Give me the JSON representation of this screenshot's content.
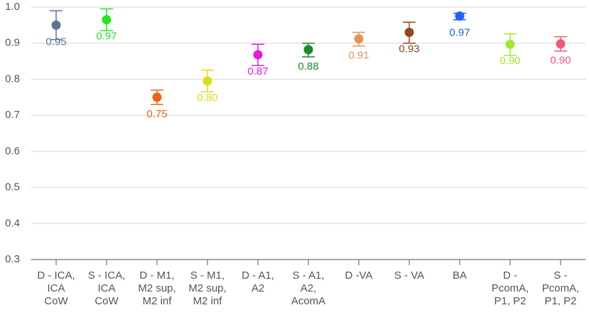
{
  "chart_data": {
    "type": "errorbar",
    "categories": [
      [
        "D - ICA,",
        "ICA",
        "CoW"
      ],
      [
        "S - ICA,",
        "ICA",
        "CoW"
      ],
      [
        "D - M1,",
        "M2 sup,",
        "M2 inf"
      ],
      [
        "S - M1,",
        "M2 sup,",
        "M2 inf"
      ],
      [
        "D - A1,",
        "A2"
      ],
      [
        "S - A1,",
        "A2,",
        "AcomA"
      ],
      [
        "D -VA"
      ],
      [
        "S - VA"
      ],
      [
        "BA"
      ],
      [
        "D -",
        "PcomA,",
        "P1, P2"
      ],
      [
        "S -",
        "PcomA,",
        "P1, P2"
      ]
    ],
    "values": [
      0.95,
      0.965,
      0.75,
      0.795,
      0.868,
      0.882,
      0.912,
      0.93,
      0.975,
      0.897,
      0.898
    ],
    "value_labels": [
      "0.95",
      "0.97",
      "0.75",
      "0.80",
      "0.87",
      "0.88",
      "0.91",
      "0.93",
      "0.97",
      "0.90",
      "0.90"
    ],
    "lower": [
      0.91,
      0.935,
      0.73,
      0.765,
      0.838,
      0.862,
      0.892,
      0.9,
      0.965,
      0.866,
      0.878
    ],
    "upper": [
      0.99,
      0.995,
      0.77,
      0.825,
      0.897,
      0.9,
      0.93,
      0.958,
      0.983,
      0.926,
      0.918
    ],
    "colors": [
      "#5f7598",
      "#22e622",
      "#e8651a",
      "#e0dc10",
      "#e619e6",
      "#1a8a2a",
      "#e8925a",
      "#93461e",
      "#1a66f0",
      "#a4e62a",
      "#ee5a7a"
    ],
    "ylim": [
      0.3,
      1.0
    ],
    "yticks": [
      {
        "value": 0.3,
        "label": "0.3"
      },
      {
        "value": 0.4,
        "label": "0.4"
      },
      {
        "value": 0.5,
        "label": "0.5"
      },
      {
        "value": 0.6,
        "label": "0.6"
      },
      {
        "value": 0.7,
        "label": "0.7"
      },
      {
        "value": 0.8,
        "label": "0.8"
      },
      {
        "value": 0.9,
        "label": "0.9"
      },
      {
        "value": 1.0,
        "label": "1.0"
      }
    ],
    "grid": true
  }
}
